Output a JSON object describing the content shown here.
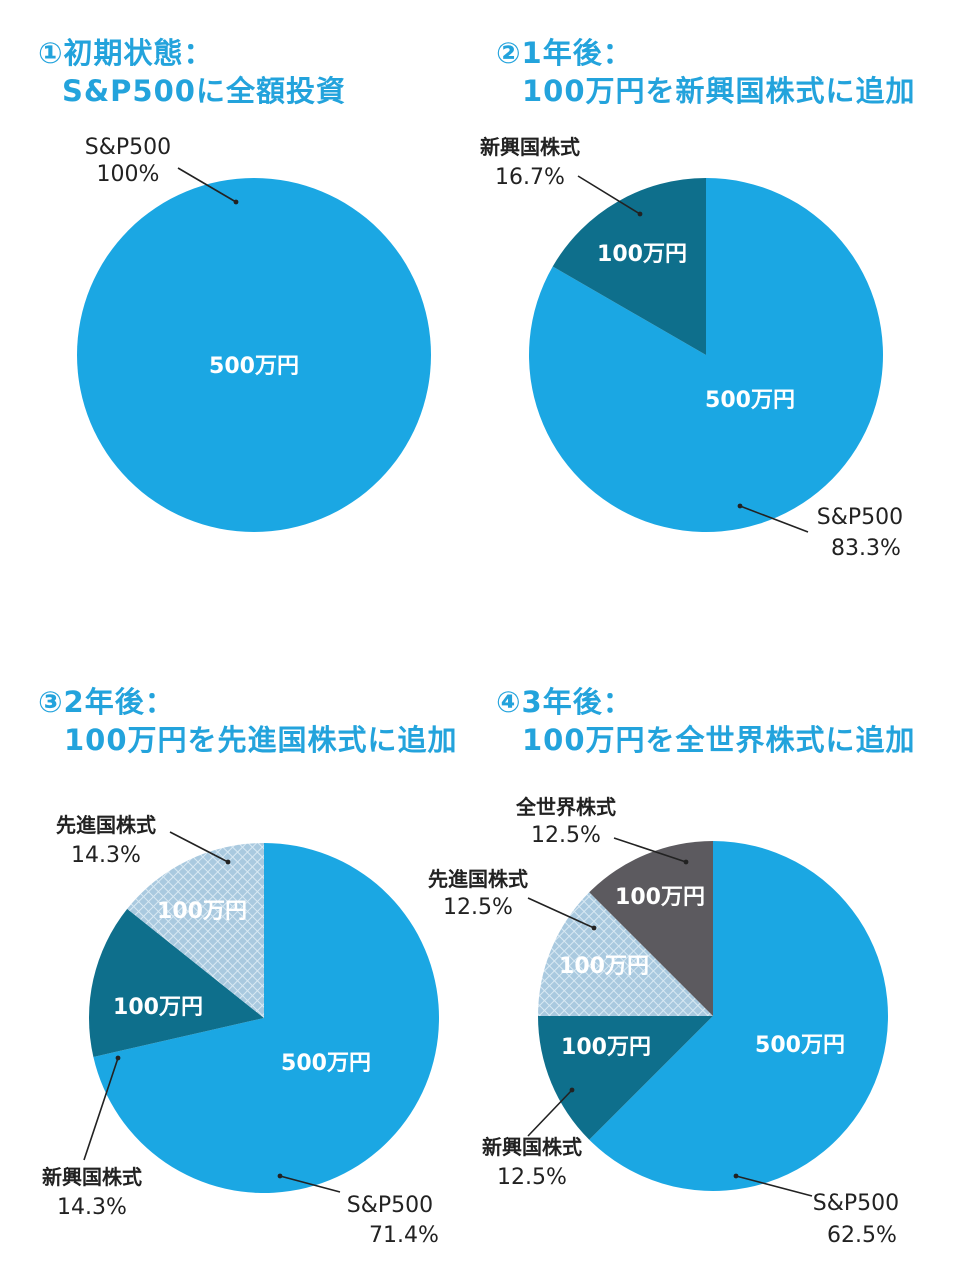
{
  "colors": {
    "title": "#23a3dc",
    "sp500": "#1ba7e3",
    "emerging": "#0e6f8c",
    "developed": "#a9c9df",
    "world": "#5c5a5f",
    "leader": "#222222",
    "inner_label": "#ffffff"
  },
  "panels": [
    {
      "title_line1": "①初期状態：",
      "title_line2": "S&P500に全額投資"
    },
    {
      "title_line1": "②1年後：",
      "title_line2": "100万円を新興国株式に追加"
    },
    {
      "title_line1": "③2年後：",
      "title_line2": "100万円を先進国株式に追加"
    },
    {
      "title_line1": "④3年後：",
      "title_line2": "100万円を全世界株式に追加"
    }
  ],
  "chart_data": [
    {
      "type": "pie",
      "slices": [
        {
          "name": "S&P500",
          "percent_label": "100%",
          "value": 500,
          "amount_label": "500万円",
          "color": "#1ba7e3",
          "pattern": "solid"
        }
      ]
    },
    {
      "type": "pie",
      "slices": [
        {
          "name": "S&P500",
          "percent_label": "83.3%",
          "value": 500,
          "amount_label": "500万円",
          "color": "#1ba7e3",
          "pattern": "solid"
        },
        {
          "name": "新興国株式",
          "percent_label": "16.7%",
          "value": 100,
          "amount_label": "100万円",
          "color": "#0e6f8c",
          "pattern": "solid"
        }
      ]
    },
    {
      "type": "pie",
      "slices": [
        {
          "name": "S&P500",
          "percent_label": "71.4%",
          "value": 500,
          "amount_label": "500万円",
          "color": "#1ba7e3",
          "pattern": "solid"
        },
        {
          "name": "新興国株式",
          "percent_label": "14.3%",
          "value": 100,
          "amount_label": "100万円",
          "color": "#0e6f8c",
          "pattern": "solid"
        },
        {
          "name": "先進国株式",
          "percent_label": "14.3%",
          "value": 100,
          "amount_label": "100万円",
          "color": "#a9c9df",
          "pattern": "crosshatch"
        }
      ]
    },
    {
      "type": "pie",
      "slices": [
        {
          "name": "S&P500",
          "percent_label": "62.5%",
          "value": 500,
          "amount_label": "500万円",
          "color": "#1ba7e3",
          "pattern": "solid"
        },
        {
          "name": "新興国株式",
          "percent_label": "12.5%",
          "value": 100,
          "amount_label": "100万円",
          "color": "#0e6f8c",
          "pattern": "solid"
        },
        {
          "name": "先進国株式",
          "percent_label": "12.5%",
          "value": 100,
          "amount_label": "100万円",
          "color": "#a9c9df",
          "pattern": "crosshatch"
        },
        {
          "name": "全世界株式",
          "percent_label": "12.5%",
          "value": 100,
          "amount_label": "100万円",
          "color": "#5c5a5f",
          "pattern": "solid"
        }
      ]
    }
  ]
}
